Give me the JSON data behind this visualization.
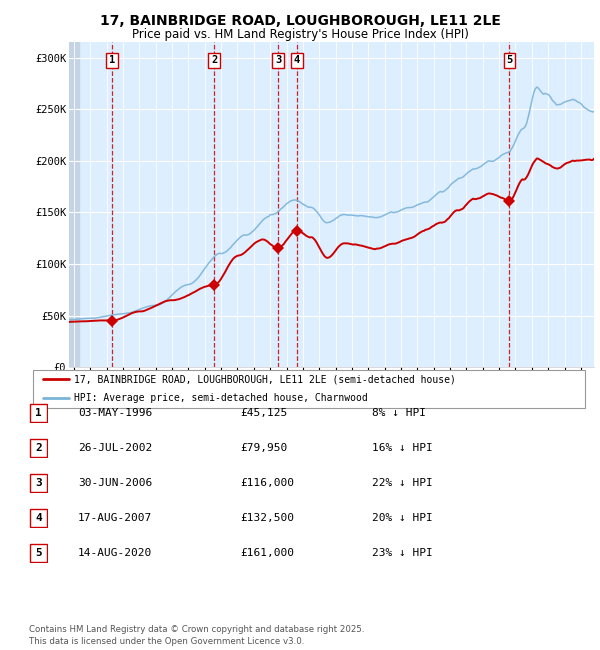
{
  "title_line1": "17, BAINBRIDGE ROAD, LOUGHBOROUGH, LE11 2LE",
  "title_line2": "Price paid vs. HM Land Registry's House Price Index (HPI)",
  "ylabel_ticks": [
    "£0",
    "£50K",
    "£100K",
    "£150K",
    "£200K",
    "£250K",
    "£300K"
  ],
  "ytick_values": [
    0,
    50000,
    100000,
    150000,
    200000,
    250000,
    300000
  ],
  "ylim": [
    0,
    315000
  ],
  "xlim_start": 1993.7,
  "xlim_end": 2025.8,
  "sale_dates": [
    1996.34,
    2002.57,
    2006.49,
    2007.63,
    2020.62
  ],
  "sale_prices": [
    45125,
    79950,
    116000,
    132500,
    161000
  ],
  "sale_labels": [
    "1",
    "2",
    "3",
    "4",
    "5"
  ],
  "sale_label_display": [
    "03-MAY-1996",
    "26-JUL-2002",
    "30-JUN-2006",
    "17-AUG-2007",
    "14-AUG-2020"
  ],
  "sale_price_display": [
    "£45,125",
    "£79,950",
    "£116,000",
    "£132,500",
    "£161,000"
  ],
  "sale_hpi_pct": [
    "8% ↓ HPI",
    "16% ↓ HPI",
    "22% ↓ HPI",
    "20% ↓ HPI",
    "23% ↓ HPI"
  ],
  "hpi_color": "#7ab4d8",
  "price_color": "#cc0000",
  "marker_color": "#cc0000",
  "vline_color": "#cc0000",
  "bg_color_main": "#ddeeff",
  "bg_color_hatch": "#c4d4e4",
  "legend_label_price": "17, BAINBRIDGE ROAD, LOUGHBOROUGH, LE11 2LE (semi-detached house)",
  "legend_label_hpi": "HPI: Average price, semi-detached house, Charnwood",
  "footer_line1": "Contains HM Land Registry data © Crown copyright and database right 2025.",
  "footer_line2": "This data is licensed under the Open Government Licence v3.0."
}
